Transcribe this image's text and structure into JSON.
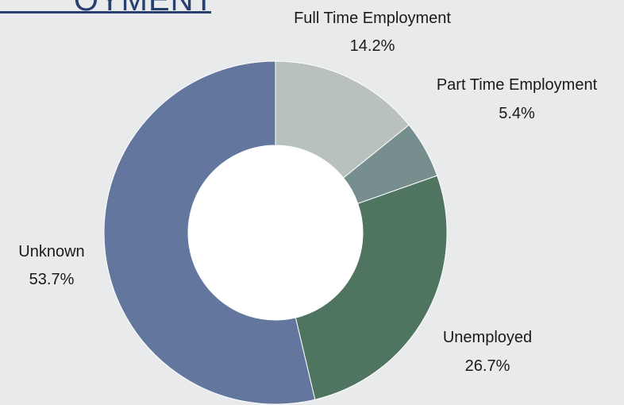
{
  "title_fragment": "OYMENT",
  "chart_data": {
    "type": "pie",
    "donut": true,
    "slices": [
      {
        "label": "Full Time Employment",
        "value": 14.2,
        "display": "14.2%",
        "color": "#b9c1bf"
      },
      {
        "label": "Part Time Employment",
        "value": 5.4,
        "display": "5.4%",
        "color": "#768f8e"
      },
      {
        "label": "Unemployed",
        "value": 26.7,
        "display": "26.7%",
        "color": "#4f7560"
      },
      {
        "label": "Unknown",
        "value": 53.7,
        "display": "53.7%",
        "color": "#63779e"
      }
    ]
  }
}
